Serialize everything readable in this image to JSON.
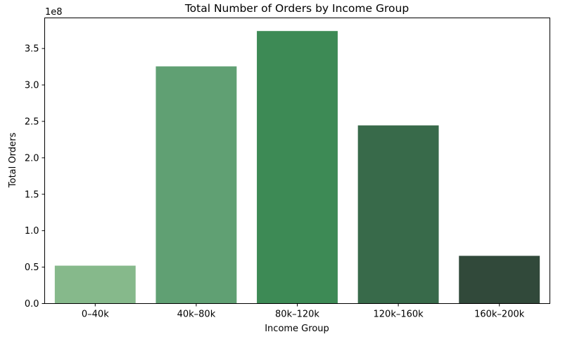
{
  "chart_data": {
    "type": "bar",
    "title": "Total Number of Orders by Income Group",
    "xlabel": "Income Group",
    "ylabel": "Total Orders",
    "offset_label": "1e8",
    "categories": [
      "0–40k",
      "40k–80k",
      "80k–120k",
      "120k–160k",
      "160k–200k"
    ],
    "values": [
      52000000,
      325500000,
      374000000,
      244500000,
      65500000
    ],
    "colors": [
      "#86b98b",
      "#60a073",
      "#3d8a55",
      "#386a4a",
      "#31493a"
    ],
    "ylim": [
      0,
      392000000
    ],
    "yticks": [
      0,
      50000000,
      100000000,
      150000000,
      200000000,
      250000000,
      300000000,
      350000000
    ],
    "ytick_labels": [
      "0.0",
      "0.5",
      "1.0",
      "1.5",
      "2.0",
      "2.5",
      "3.0",
      "3.5"
    ],
    "grid": false,
    "legend": "none"
  }
}
